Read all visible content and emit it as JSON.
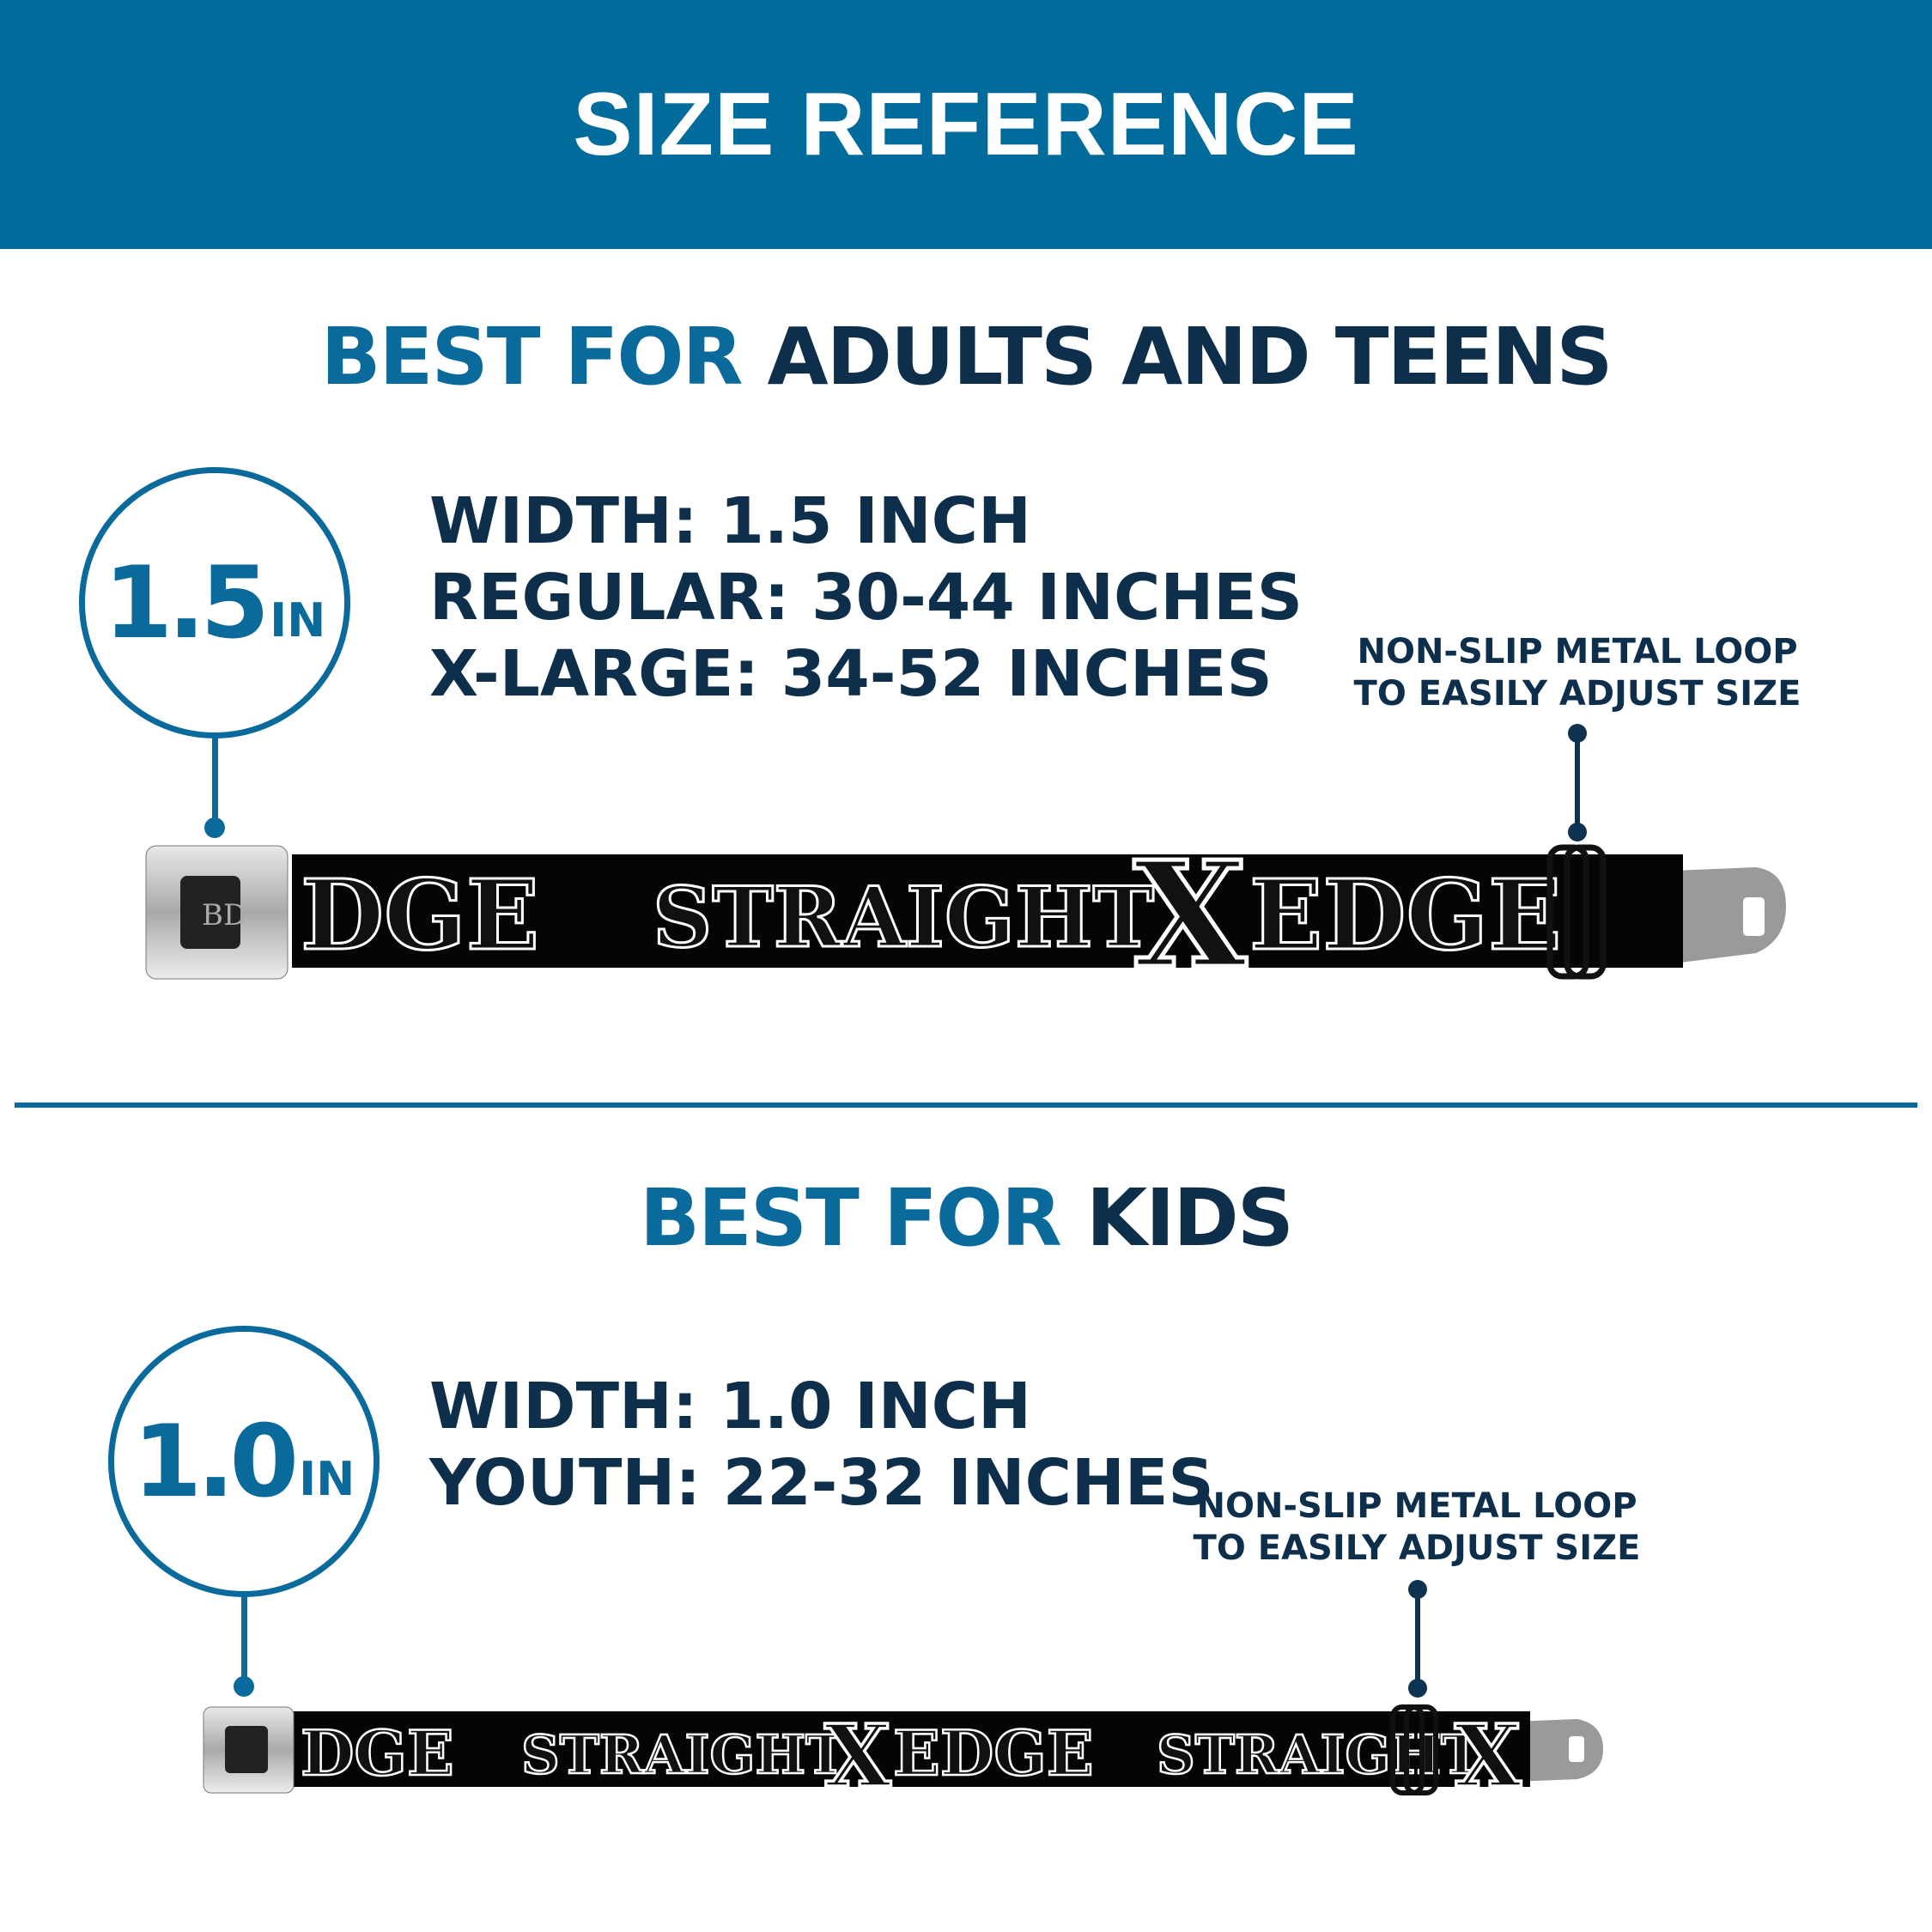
{
  "header": {
    "title": "SIZE REFERENCE"
  },
  "colors": {
    "header_bg": "#016b9b",
    "accent": "#0a6a9c",
    "dark_text": "#0e2f4c"
  },
  "adult": {
    "heading_prefix": "BEST FOR",
    "heading_main": "ADULTS AND TEENS",
    "badge_number": "1.5",
    "badge_unit": "IN",
    "specs": [
      "WIDTH: 1.5 INCH",
      "REGULAR: 30-44 INCHES",
      "X-LARGE: 34-52 INCHES"
    ],
    "note": [
      "NON-SLIP METAL LOOP",
      "TO EASILY ADJUST SIZE"
    ],
    "belt_print": {
      "left": "DGE",
      "word1": "STRAIGHT",
      "x": "X",
      "word2": "EDGE"
    }
  },
  "kids": {
    "heading_prefix": "BEST FOR",
    "heading_main": "KIDS",
    "badge_number": "1.0",
    "badge_unit": "IN",
    "specs": [
      "WIDTH: 1.0 INCH",
      "YOUTH: 22-32 INCHES"
    ],
    "note": [
      "NON-SLIP METAL LOOP",
      "TO EASILY ADJUST SIZE"
    ],
    "belt_print": {
      "left": "DGE",
      "word1": "STRAIGHT",
      "x": "X",
      "word2": "EDGE",
      "word3": "STRAIGHT",
      "x2": "X"
    }
  }
}
